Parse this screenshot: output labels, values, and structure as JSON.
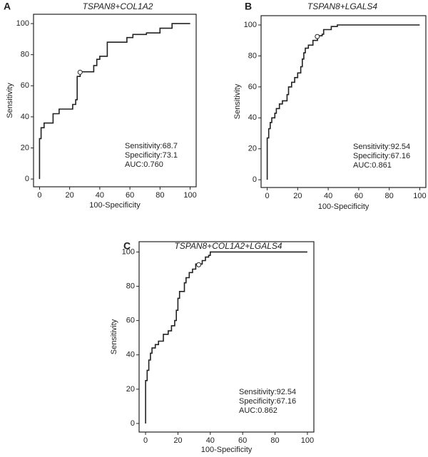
{
  "chart_data": [
    {
      "type": "line",
      "panel": "A",
      "title": "TSPAN8+COL1A2",
      "xlabel": "100-Specificity",
      "ylabel": "Sensitivity",
      "xlim": [
        -4,
        104
      ],
      "ylim": [
        -5,
        106
      ],
      "xticks": [
        0,
        20,
        40,
        60,
        80,
        100
      ],
      "yticks": [
        0,
        20,
        40,
        60,
        80,
        100
      ],
      "color": "#222222",
      "x": [
        0,
        0,
        1,
        1,
        3,
        3,
        9,
        9,
        13,
        13,
        22,
        22,
        24,
        24,
        25,
        25,
        27,
        27,
        36,
        36,
        38,
        38,
        40,
        40,
        45,
        45,
        58,
        58,
        62,
        62,
        71,
        71,
        80,
        80,
        88,
        88,
        100
      ],
      "y": [
        0,
        26,
        26,
        33,
        33,
        36,
        36,
        42,
        42,
        45,
        45,
        48,
        48,
        51,
        51,
        66,
        66,
        69,
        69,
        73,
        73,
        77,
        77,
        79,
        79,
        88,
        88,
        91,
        91,
        93,
        93,
        94,
        94,
        97,
        97,
        100,
        100
      ],
      "cutoff_point": {
        "x": 26.9,
        "y": 68.7
      },
      "annotations": [
        "Sensitivity:68.7",
        "Specificity:73.1",
        "AUC:0.760"
      ]
    },
    {
      "type": "line",
      "panel": "B",
      "title": "TSPAN8+LGALS4",
      "xlabel": "100-Specificity",
      "ylabel": "Sensitivity",
      "xlim": [
        -4,
        104
      ],
      "ylim": [
        -5,
        106
      ],
      "xticks": [
        0,
        20,
        40,
        60,
        80,
        100
      ],
      "yticks": [
        0,
        20,
        40,
        60,
        80,
        100
      ],
      "color": "#222222",
      "x": [
        0,
        0,
        1,
        1,
        2,
        2,
        3,
        3,
        5,
        5,
        6,
        6,
        8,
        8,
        10,
        10,
        13,
        13,
        14,
        14,
        16,
        16,
        18,
        18,
        20,
        20,
        22,
        22,
        23,
        23,
        24,
        24,
        25,
        25,
        27,
        27,
        30,
        30,
        33,
        33,
        36,
        36,
        37,
        37,
        42,
        42,
        46,
        46,
        100
      ],
      "y": [
        0,
        27,
        27,
        33,
        33,
        37,
        37,
        40,
        40,
        43,
        43,
        46,
        46,
        49,
        49,
        51,
        51,
        55,
        55,
        60,
        60,
        63,
        63,
        66,
        66,
        69,
        69,
        73,
        73,
        78,
        78,
        82,
        82,
        85,
        85,
        87,
        87,
        90,
        90,
        93,
        93,
        94,
        94,
        97,
        97,
        99,
        99,
        100,
        100
      ],
      "cutoff_point": {
        "x": 32.84,
        "y": 92.54
      },
      "annotations": [
        "Sensitivity:92.54",
        "Specificity:67.16",
        "AUC:0.861"
      ]
    },
    {
      "type": "line",
      "panel": "C",
      "title": "TSPAN8+COL1A2+LGALS4",
      "xlabel": "100-Specificity",
      "ylabel": "Sensitivity",
      "xlim": [
        -4,
        104
      ],
      "ylim": [
        -5,
        106
      ],
      "xticks": [
        0,
        20,
        40,
        60,
        80,
        100
      ],
      "yticks": [
        0,
        20,
        40,
        60,
        80,
        100
      ],
      "color": "#222222",
      "x": [
        0,
        0,
        1,
        1,
        2,
        2,
        3,
        3,
        4,
        4,
        6,
        6,
        8,
        8,
        11,
        11,
        14,
        14,
        16,
        16,
        18,
        18,
        19,
        19,
        20,
        20,
        21,
        21,
        24,
        24,
        25,
        25,
        27,
        27,
        29,
        29,
        31,
        31,
        35,
        35,
        37,
        37,
        39,
        39,
        40,
        40,
        100
      ],
      "y": [
        0,
        25,
        25,
        31,
        31,
        37,
        37,
        41,
        41,
        44,
        44,
        46,
        46,
        48,
        48,
        52,
        52,
        54,
        54,
        57,
        57,
        60,
        60,
        66,
        66,
        73,
        73,
        77,
        77,
        82,
        82,
        85,
        85,
        88,
        88,
        90,
        90,
        93,
        93,
        95,
        95,
        97,
        97,
        98,
        98,
        100,
        100
      ],
      "cutoff_point": {
        "x": 32.84,
        "y": 92.54
      },
      "annotations": [
        "Sensitivity:92.54",
        "Specificity:67.16",
        "AUC:0.862"
      ]
    }
  ]
}
